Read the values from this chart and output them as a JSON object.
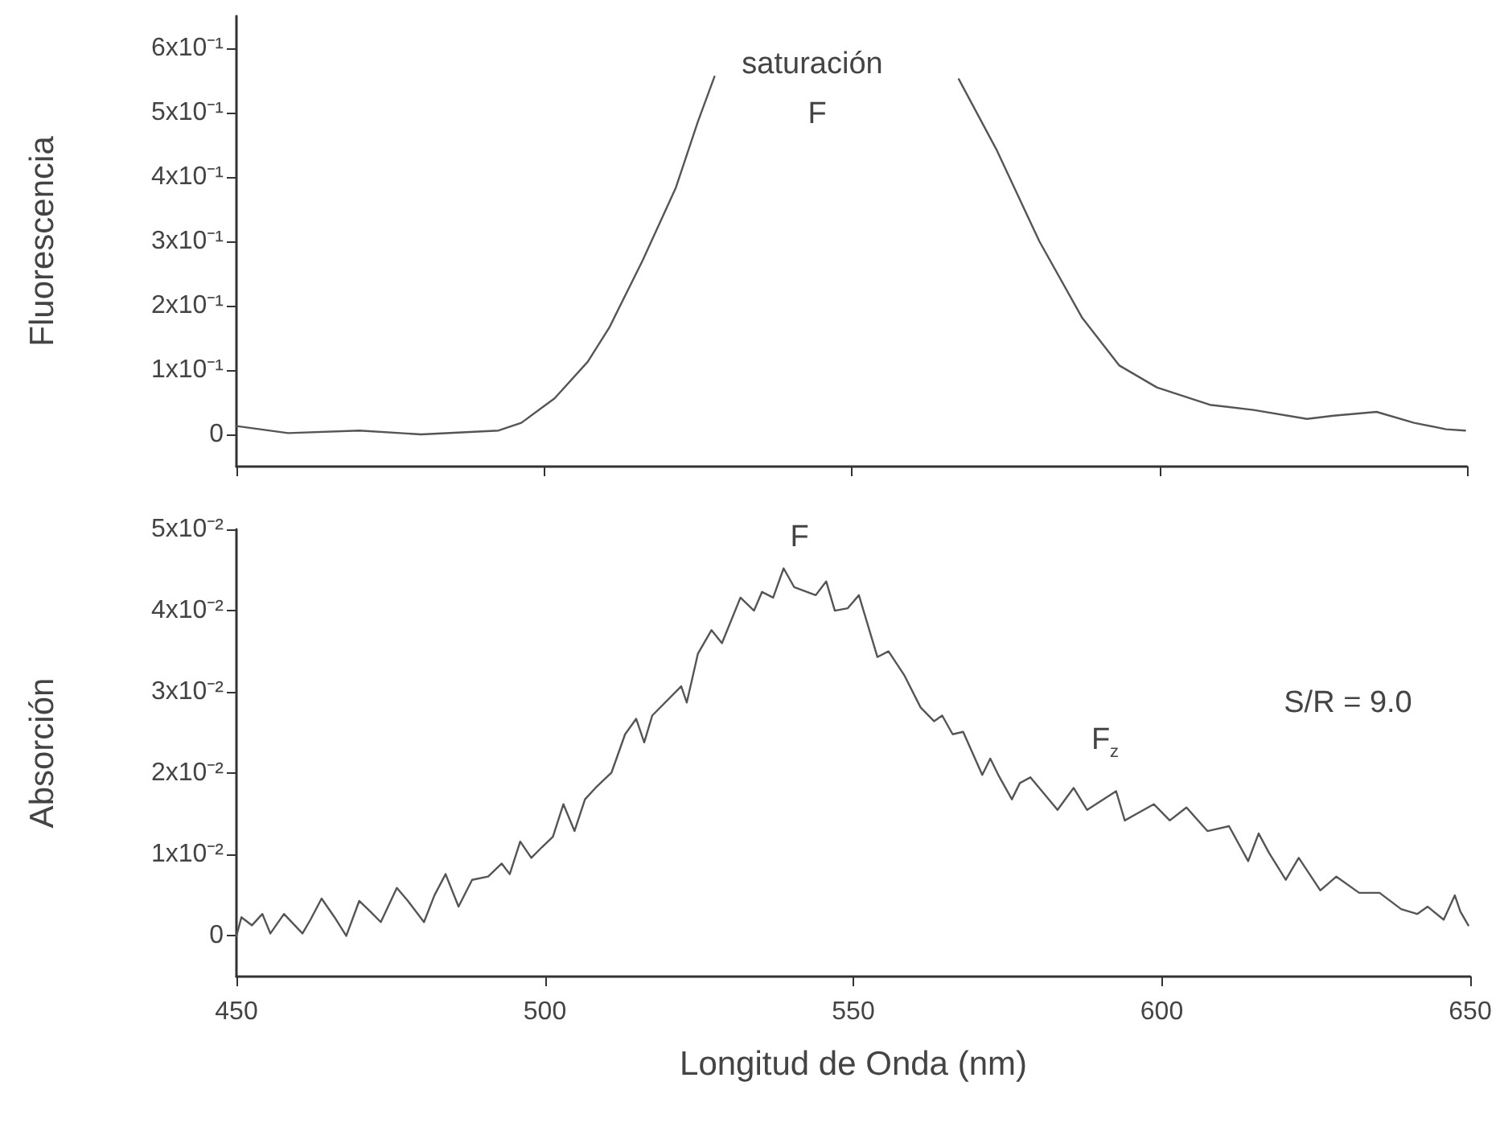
{
  "chart_data": [
    {
      "type": "line",
      "ylabel": "Fluorescencia",
      "xlim": [
        450,
        650
      ],
      "xticks": [
        450,
        500,
        550,
        600,
        650
      ],
      "tick_labels": "y",
      "ylim": [
        -0.05,
        0.65
      ],
      "yticks": [
        0,
        {
          "value": 0.1,
          "label": "1x10⁻¹"
        },
        {
          "value": 0.2,
          "label": "2x10⁻¹"
        },
        {
          "value": 0.3,
          "label": "3x10⁻¹"
        },
        {
          "value": 0.4,
          "label": "4x10⁻¹"
        },
        {
          "value": 0.5,
          "label": "5x10⁻¹"
        },
        {
          "value": 0.6,
          "label": "6x10⁻¹"
        }
      ],
      "grid": false,
      "marker": "none",
      "line_style": "solid",
      "series": [
        {
          "color": "#555555",
          "x": [
            450,
            458.4,
            470,
            480,
            492.6,
            496.3,
            501.7,
            507.1,
            510.6,
            516,
            521.4,
            525,
            527.7,
            547,
            567.4,
            573.5,
            580.5,
            587.4,
            593.5,
            599.6,
            608.2,
            615.3,
            624,
            628.3,
            635.3,
            641.4,
            646.6,
            649.7
          ],
          "values": [
            0.013,
            0.002,
            0.006,
            0,
            0.006,
            0.018,
            0.056,
            0.113,
            0.166,
            0.27,
            0.383,
            0.486,
            0.556,
            null,
            0.552,
            0.443,
            0.3,
            0.182,
            0.107,
            0.073,
            0.046,
            0.038,
            0.024,
            0.029,
            0.035,
            0.018,
            0.008,
            0.006
          ]
        }
      ],
      "annotations": [
        "saturación",
        "F"
      ]
    },
    {
      "type": "line",
      "ylabel": "Absorción",
      "xlabel": "Longitud de Onda (nm)",
      "xlim": [
        450,
        650
      ],
      "xticks": [
        450,
        500,
        550,
        600,
        650
      ],
      "ylim": [
        -0.005,
        0.05
      ],
      "yticks": [
        0,
        {
          "value": 0.01,
          "label": "1x10⁻²"
        },
        {
          "value": 0.02,
          "label": "2x10⁻²"
        },
        {
          "value": 0.03,
          "label": "3x10⁻²"
        },
        {
          "value": 0.04,
          "label": "4x10⁻²"
        },
        {
          "value": 0.05,
          "label": "5x10⁻²"
        }
      ],
      "grid": false,
      "marker": "none",
      "line_style": "solid",
      "series": [
        {
          "color": "#555555",
          "x": [
            450,
            450.8,
            452.5,
            454.2,
            455.5,
            457.7,
            460.7,
            462,
            463.8,
            465.9,
            467.8,
            469.9,
            471.7,
            473.4,
            476,
            477.8,
            480.4,
            482.1,
            483.9,
            486,
            488.2,
            490.8,
            493,
            494.3,
            496,
            497.8,
            499.5,
            501.3,
            503,
            504.8,
            506.5,
            508.2,
            510.8,
            513,
            514.8,
            516.1,
            517.4,
            522.1,
            523,
            524.8,
            527,
            528.7,
            531.7,
            533.9,
            535.2,
            537,
            538.7,
            540.4,
            543.9,
            545.6,
            547,
            549.1,
            550.9,
            553.9,
            555.7,
            558.3,
            560.9,
            563.1,
            564.4,
            566.1,
            567.8,
            570.9,
            572.2,
            573.5,
            575.7,
            577,
            578.7,
            583.1,
            585.7,
            587.9,
            592.6,
            594,
            598.7,
            601.3,
            604,
            607.4,
            610.9,
            614,
            615.7,
            617.4,
            620.1,
            622.2,
            625.7,
            628.3,
            632,
            635.3,
            638.8,
            641.4,
            643.1,
            645.7,
            647.5,
            648.4,
            649.7
          ],
          "values": [
            0,
            0.0023,
            0.0013,
            0.0027,
            0.0003,
            0.0027,
            0.0003,
            0.002,
            0.0046,
            0.0023,
            0,
            0.0043,
            0.003,
            0.0017,
            0.0059,
            0.0043,
            0.0017,
            0.005,
            0.0076,
            0.0036,
            0.0069,
            0.0073,
            0.0089,
            0.0076,
            0.0116,
            0.0096,
            0.0109,
            0.0122,
            0.0162,
            0.0129,
            0.0168,
            0.0182,
            0.0201,
            0.0248,
            0.0267,
            0.0238,
            0.0271,
            0.0307,
            0.0287,
            0.0347,
            0.0376,
            0.036,
            0.0416,
            0.04,
            0.0423,
            0.0416,
            0.0452,
            0.0429,
            0.0419,
            0.0436,
            0.04,
            0.0403,
            0.0419,
            0.0343,
            0.035,
            0.032,
            0.0281,
            0.0264,
            0.0271,
            0.0248,
            0.0251,
            0.0198,
            0.0218,
            0.0198,
            0.0168,
            0.0188,
            0.0195,
            0.0155,
            0.0182,
            0.0155,
            0.0178,
            0.0142,
            0.0162,
            0.0142,
            0.0158,
            0.0129,
            0.0135,
            0.0092,
            0.0126,
            0.0102,
            0.0069,
            0.0096,
            0.0056,
            0.0073,
            0.0053,
            0.0053,
            0.0033,
            0.0027,
            0.0036,
            0.002,
            0.005,
            0.003,
            0.0013
          ]
        }
      ],
      "annotations": [
        "F",
        "F$_{z}$",
        "S/R = 9.0"
      ]
    }
  ]
}
